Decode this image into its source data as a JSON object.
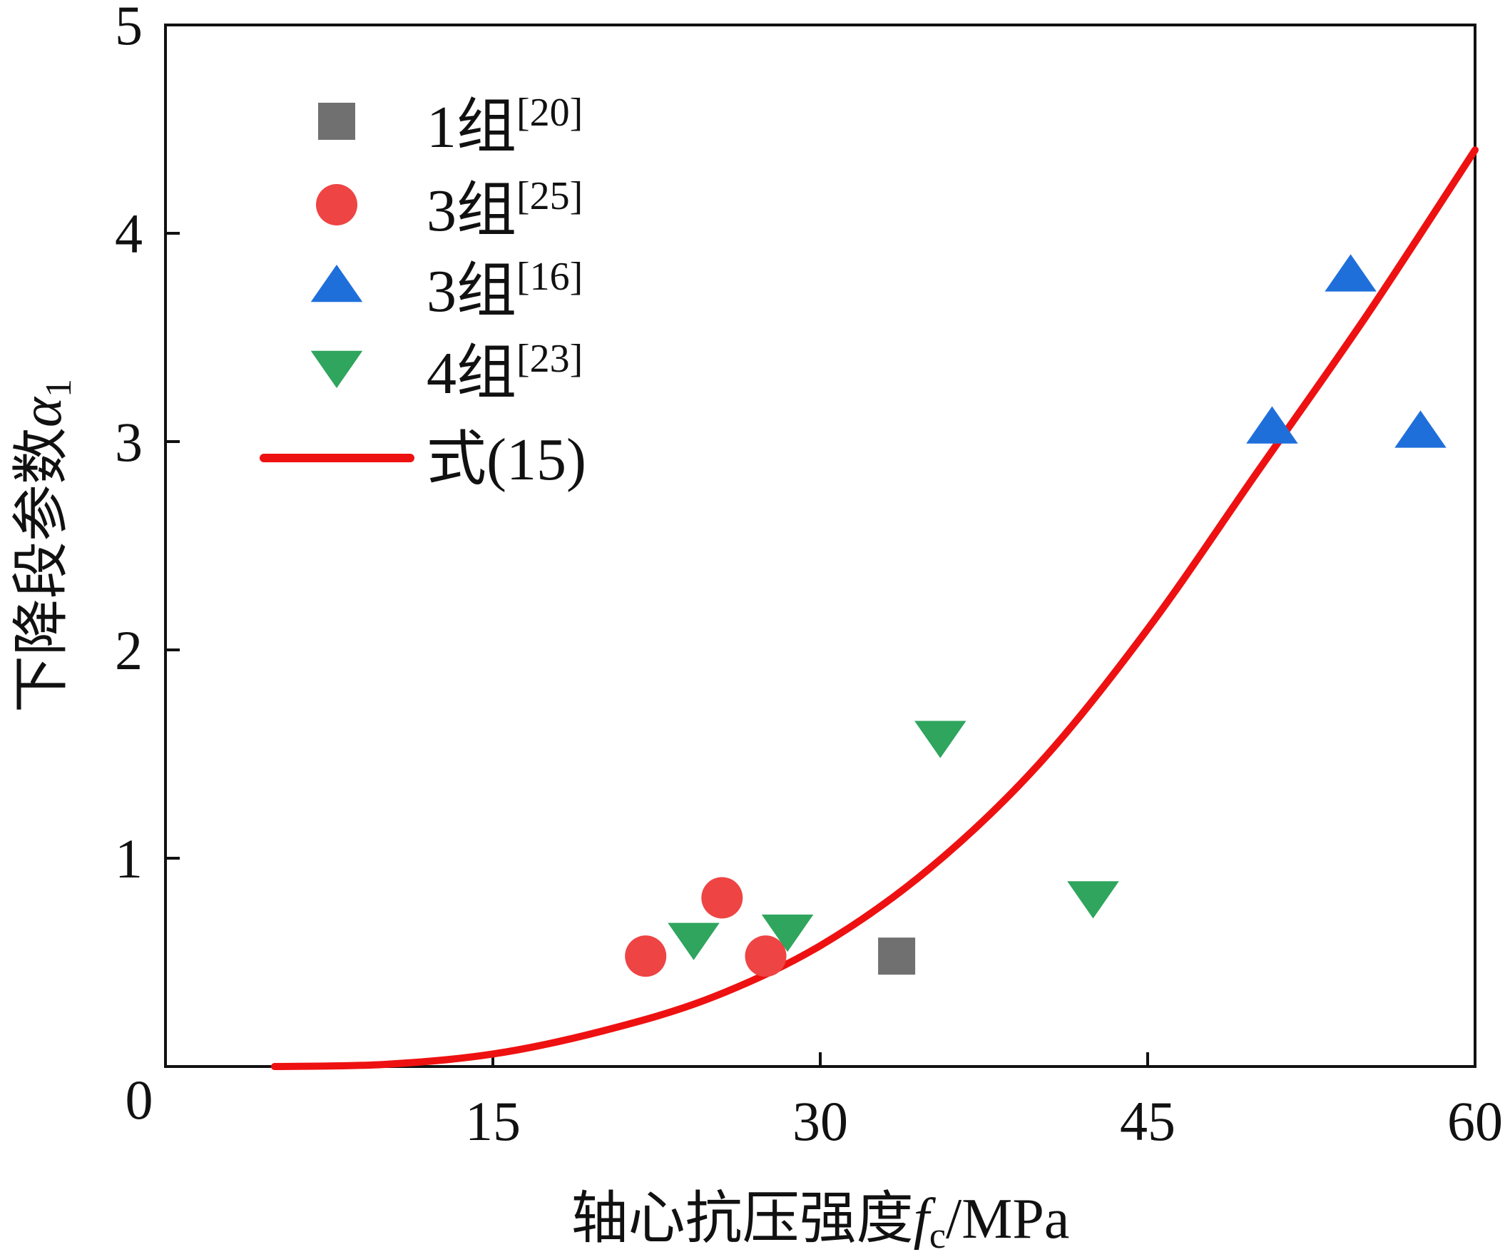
{
  "chart_data": {
    "type": "scatter",
    "xlabel": "轴心抗压强度",
    "xlabel_symbol": "f",
    "xlabel_subscript": "c",
    "xlabel_unit": "/MPa",
    "ylabel": "下降段参数",
    "ylabel_symbol": "α",
    "ylabel_subscript": "1",
    "xlim": [
      0,
      60
    ],
    "ylim": [
      0,
      5
    ],
    "xticks": [
      0,
      15,
      30,
      45,
      60
    ],
    "yticks": [
      1,
      2,
      3,
      4,
      5
    ],
    "grid": false,
    "legend_position": "top-left",
    "series": [
      {
        "name": "1组",
        "ref": "[20]",
        "marker": "square",
        "color": "#707070",
        "points": [
          [
            33.5,
            0.53
          ]
        ]
      },
      {
        "name": "3组",
        "ref": "[25]",
        "marker": "circle",
        "color": "#ee4444",
        "points": [
          [
            22,
            0.53
          ],
          [
            25.5,
            0.81
          ],
          [
            27.5,
            0.53
          ]
        ]
      },
      {
        "name": "3组",
        "ref": "[16]",
        "marker": "triangle-up",
        "color": "#1f6fdb",
        "points": [
          [
            50.7,
            3.07
          ],
          [
            54.3,
            3.8
          ],
          [
            57.5,
            3.05
          ]
        ]
      },
      {
        "name": "4组",
        "ref": "[23]",
        "marker": "triangle-down",
        "color": "#2fa55e",
        "points": [
          [
            24.2,
            0.61
          ],
          [
            28.5,
            0.65
          ],
          [
            35.5,
            1.58
          ],
          [
            42.5,
            0.81
          ]
        ]
      }
    ],
    "curve": {
      "name": "式(15)",
      "color": "#ee1111",
      "points": [
        [
          5,
          0.0
        ],
        [
          10,
          0.01
        ],
        [
          15,
          0.06
        ],
        [
          20,
          0.17
        ],
        [
          25,
          0.33
        ],
        [
          30,
          0.58
        ],
        [
          35,
          0.95
        ],
        [
          40,
          1.45
        ],
        [
          45,
          2.1
        ],
        [
          50,
          2.85
        ],
        [
          55,
          3.6
        ],
        [
          60,
          4.4
        ]
      ]
    }
  }
}
